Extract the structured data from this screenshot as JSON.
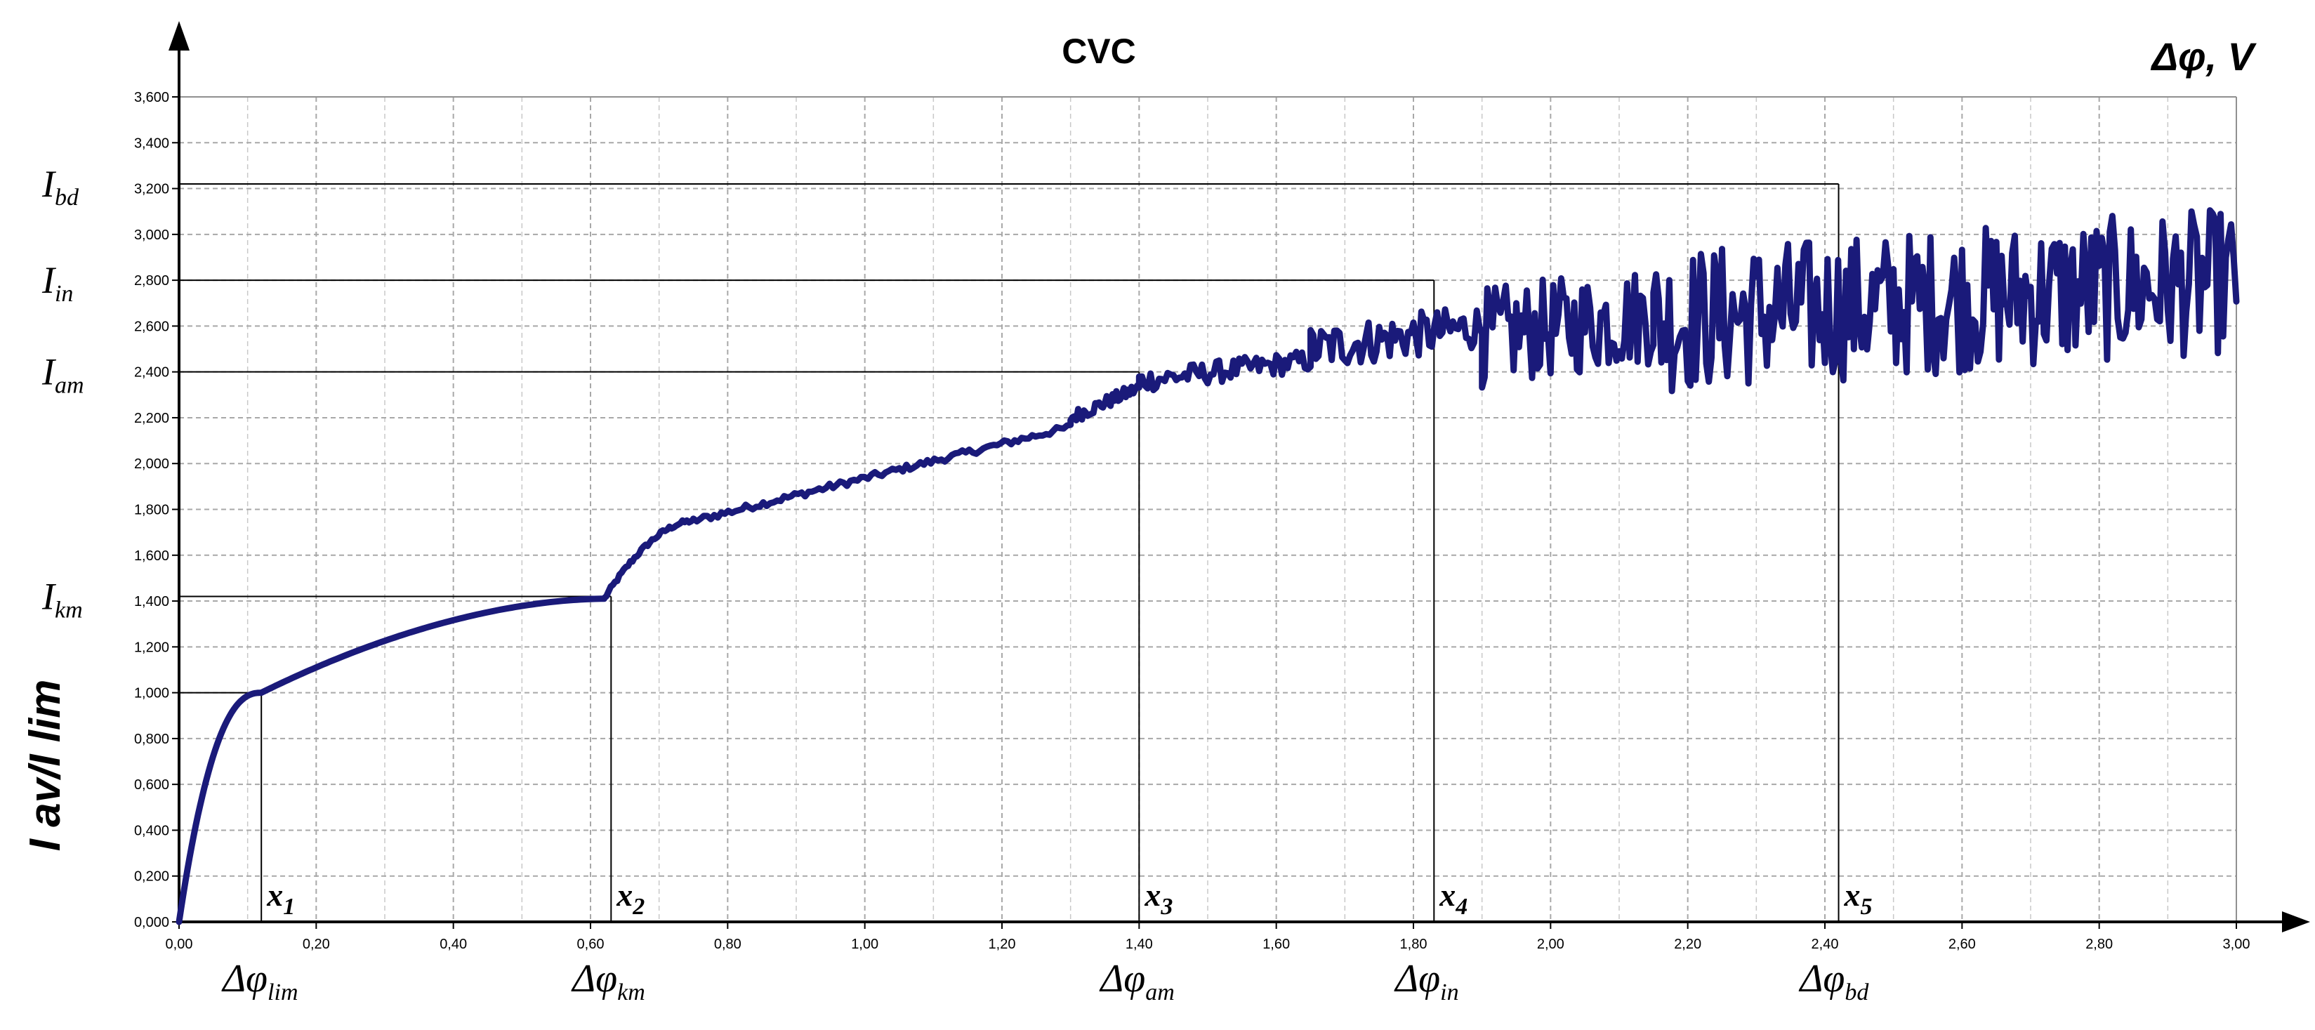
{
  "chart_data": {
    "type": "line",
    "title": "CVC",
    "unit_label": "Δφ, V",
    "ylabel": "I av/I lim",
    "xlim": [
      0,
      3.0
    ],
    "ylim": [
      0,
      3.6
    ],
    "x_ticks": [
      "0,00",
      "0,20",
      "0,40",
      "0,60",
      "0,80",
      "1,00",
      "1,20",
      "1,40",
      "1,60",
      "1,80",
      "2,00",
      "2,20",
      "2,40",
      "2,60",
      "2,80",
      "3,00"
    ],
    "y_ticks": [
      "0,000",
      "0,200",
      "0,400",
      "0,600",
      "0,800",
      "1,000",
      "1,200",
      "1,400",
      "1,600",
      "1,800",
      "2,000",
      "2,200",
      "2,400",
      "2,600",
      "2,800",
      "3,000",
      "3,200",
      "3,400",
      "3,600"
    ],
    "grid": true,
    "series_color": "#1a1a7a",
    "levels": [
      {
        "id": "lim",
        "y": 1.0,
        "x": 0.12
      },
      {
        "id": "km",
        "y": 1.42,
        "x": 0.63
      },
      {
        "id": "am",
        "y": 2.4,
        "x": 1.4
      },
      {
        "id": "in",
        "y": 2.8,
        "x": 1.83
      },
      {
        "id": "bd",
        "y": 3.22,
        "x": 2.42
      }
    ],
    "y_annotations": [
      {
        "main": "I",
        "sub": "bd",
        "y": 3.22
      },
      {
        "main": "I",
        "sub": "in",
        "y": 2.8
      },
      {
        "main": "I",
        "sub": "am",
        "y": 2.4
      },
      {
        "main": "I",
        "sub": "km",
        "y": 1.42
      }
    ],
    "x_annotations": [
      {
        "main": "Δφ",
        "sub": "lim",
        "x": 0.12
      },
      {
        "main": "Δφ",
        "sub": "km",
        "x": 0.63
      },
      {
        "main": "Δφ",
        "sub": "am",
        "x": 1.4
      },
      {
        "main": "Δφ",
        "sub": "in",
        "x": 1.83
      },
      {
        "main": "Δφ",
        "sub": "bd",
        "x": 2.42
      }
    ],
    "point_labels": [
      {
        "main": "x",
        "sub": "1",
        "x": 0.12
      },
      {
        "main": "x",
        "sub": "2",
        "x": 0.63
      },
      {
        "main": "x",
        "sub": "3",
        "x": 1.4
      },
      {
        "main": "x",
        "sub": "4",
        "x": 1.83
      },
      {
        "main": "x",
        "sub": "5",
        "x": 2.42
      }
    ],
    "segments": [
      {
        "x0": 0.0,
        "x1": 0.12,
        "shape": "sqrt",
        "y0": 0.0,
        "y1": 1.0,
        "noise": 0
      },
      {
        "x0": 0.12,
        "x1": 0.62,
        "shape": "concave",
        "y0": 1.0,
        "y1": 1.41,
        "noise": 0
      },
      {
        "x0": 0.62,
        "x1": 0.75,
        "shape": "concave",
        "y0": 1.41,
        "y1": 1.75,
        "noise": 0.01
      },
      {
        "x0": 0.75,
        "x1": 1.3,
        "shape": "linear",
        "y0": 1.75,
        "y1": 2.16,
        "noise": 0.015
      },
      {
        "x0": 1.3,
        "x1": 1.4,
        "shape": "linear",
        "y0": 2.2,
        "y1": 2.33,
        "noise": 0.03
      },
      {
        "x0": 1.4,
        "x1": 1.65,
        "shape": "linear",
        "y0": 2.36,
        "y1": 2.45,
        "noise": 0.05
      },
      {
        "x0": 1.65,
        "x1": 1.9,
        "shape": "linear",
        "y0": 2.5,
        "y1": 2.6,
        "noise": 0.1
      },
      {
        "x0": 1.9,
        "x1": 2.15,
        "shape": "linear",
        "y0": 2.55,
        "y1": 2.65,
        "noise": 0.22
      },
      {
        "x0": 2.15,
        "x1": 3.0,
        "shape": "linear",
        "y0": 2.62,
        "y1": 2.8,
        "noise": 0.32
      }
    ]
  }
}
